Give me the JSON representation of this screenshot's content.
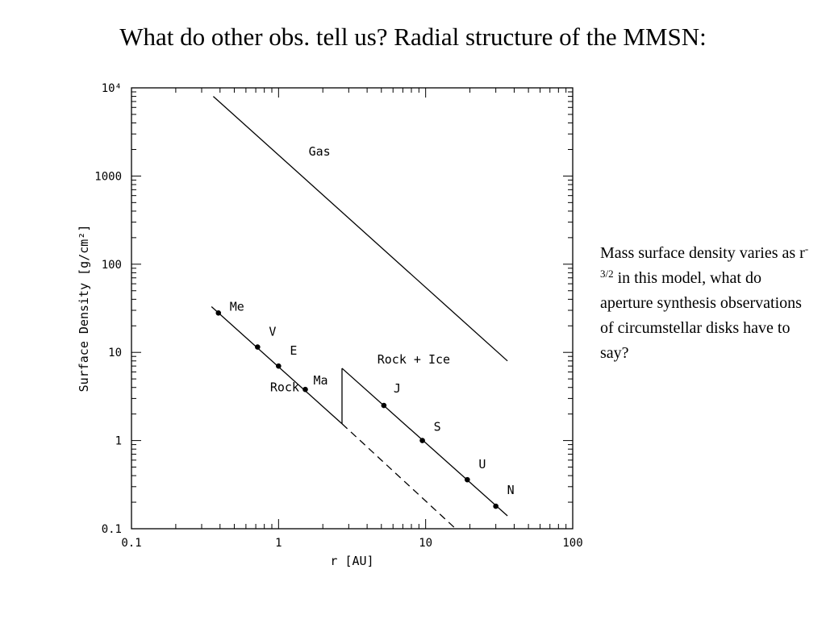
{
  "slide": {
    "title": "What do other obs. tell us? Radial structure of the MMSN:",
    "note_before": "Mass surface density varies as r",
    "note_exponent": "-3/2",
    "note_after": " in this model, what do aperture synthesis observations of circumstellar disks have to say?"
  },
  "chart_data": {
    "type": "line",
    "title": "",
    "xlabel": "r [AU]",
    "ylabel": "Surface Density [g/cm²]",
    "xscale": "log",
    "yscale": "log",
    "xlim": [
      0.1,
      100
    ],
    "ylim": [
      0.1,
      10000
    ],
    "x_ticks": [
      {
        "value": 0.1,
        "label": "0.1"
      },
      {
        "value": 1,
        "label": "1"
      },
      {
        "value": 10,
        "label": "10"
      },
      {
        "value": 100,
        "label": "100"
      }
    ],
    "y_ticks": [
      {
        "value": 0.1,
        "label": "0.1"
      },
      {
        "value": 1,
        "label": "1"
      },
      {
        "value": 10,
        "label": "10"
      },
      {
        "value": 100,
        "label": "100"
      },
      {
        "value": 1000,
        "label": "1000"
      },
      {
        "value": 10000,
        "label": "10⁴"
      }
    ],
    "grid": false,
    "series": [
      {
        "name": "Gas",
        "style": "solid",
        "points": [
          [
            0.36,
            8000
          ],
          [
            36,
            8.0
          ]
        ]
      },
      {
        "name": "Rock",
        "style": "solid",
        "points": [
          [
            0.35,
            33
          ],
          [
            2.7,
            1.55
          ]
        ]
      },
      {
        "name": "",
        "style": "dashed",
        "points": [
          [
            2.7,
            1.55
          ],
          [
            16,
            0.1
          ]
        ]
      },
      {
        "name": "",
        "style": "solid",
        "points": [
          [
            2.7,
            1.55
          ],
          [
            2.7,
            6.6
          ]
        ]
      },
      {
        "name": "Rock + Ice",
        "style": "solid",
        "points": [
          [
            2.7,
            6.6
          ],
          [
            36,
            0.14
          ]
        ]
      }
    ],
    "annotations": [
      {
        "text": "Gas",
        "x": 1.9,
        "y": 1700
      },
      {
        "text": "Rock",
        "x": 1.1,
        "y": 3.6
      },
      {
        "text": "Rock + Ice",
        "x": 8.3,
        "y": 7.5
      }
    ],
    "planets": [
      {
        "label": "Me",
        "x": 0.39,
        "y": 28
      },
      {
        "label": "V",
        "x": 0.72,
        "y": 11.5
      },
      {
        "label": "E",
        "x": 1.0,
        "y": 7.0
      },
      {
        "label": "Ma",
        "x": 1.52,
        "y": 3.8
      },
      {
        "label": "J",
        "x": 5.2,
        "y": 2.5
      },
      {
        "label": "S",
        "x": 9.5,
        "y": 1.0
      },
      {
        "label": "U",
        "x": 19.2,
        "y": 0.36
      },
      {
        "label": "N",
        "x": 30,
        "y": 0.18
      }
    ]
  }
}
